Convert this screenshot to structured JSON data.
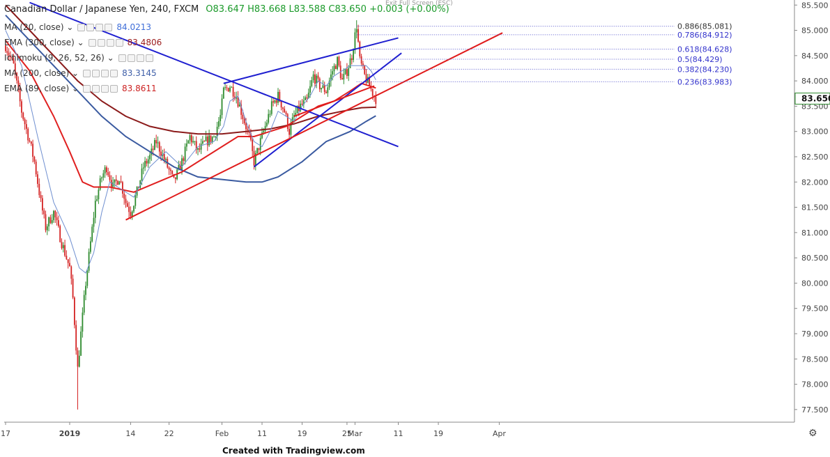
{
  "header": {
    "symbol": "Canadian Dollar / Japanese Yen, 240, FXCM",
    "ohlc": "O83.647 H83.668 L83.588 C83.650 +0.003 (+0.00%)",
    "exit_fullscreen": "Exit Full Screen (ESC)"
  },
  "indicators": [
    {
      "label": "MA (20, close)",
      "value": "84.0213",
      "color": "#3f6ed8"
    },
    {
      "label": "EMA (300, close)",
      "value": "83.4806",
      "color": "#9b1b1b"
    },
    {
      "label": "Ichimoku (9, 26, 52, 26)",
      "value": "",
      "color": "#333333"
    },
    {
      "label": "MA (200, close)",
      "value": "83.3145",
      "color": "#3f5fa8"
    },
    {
      "label": "EMA (89, close)",
      "value": "83.8611",
      "color": "#cc2222"
    }
  ],
  "footer": {
    "credit": "Created with Tradingview.com",
    "settings_icon": "gear-icon"
  },
  "colors": {
    "up": "#2e8b2e",
    "down": "#d42222",
    "blue_line": "#1f1fd0",
    "red_line": "#e01b1b",
    "ema300": "#8b1a1a",
    "ma200": "#3a5aa0",
    "ema89": "#e02020",
    "ma20": "#6f8fd0"
  },
  "chart_data": {
    "type": "candlestick",
    "title": "Canadian Dollar / Japanese Yen, 240, FXCM",
    "ylim": [
      77.25,
      85.6
    ],
    "y_ticks": [
      77.5,
      78.0,
      78.5,
      79.0,
      79.5,
      80.0,
      80.5,
      81.0,
      81.5,
      82.0,
      82.5,
      83.0,
      83.5,
      84.0,
      84.5,
      85.0,
      85.5
    ],
    "y_tick_labels": [
      "77.500",
      "78.000",
      "78.500",
      "79.000",
      "79.500",
      "80.000",
      "80.500",
      "81.000",
      "81.500",
      "82.000",
      "82.500",
      "83.000",
      "83.500",
      "84.000",
      "84.500",
      "85.000",
      "85.500"
    ],
    "last_price": "83.650",
    "x_tick_labels": [
      {
        "i": 0,
        "label": "17"
      },
      {
        "i": 40,
        "label": "2019"
      },
      {
        "i": 78,
        "label": "14"
      },
      {
        "i": 102,
        "label": "22"
      },
      {
        "i": 135,
        "label": "Feb"
      },
      {
        "i": 160,
        "label": "11"
      },
      {
        "i": 185,
        "label": "19"
      },
      {
        "i": 213,
        "label": "25"
      },
      {
        "i": 218,
        "label": "Mar"
      },
      {
        "i": 245,
        "label": "11"
      },
      {
        "i": 270,
        "label": "19"
      },
      {
        "i": 308,
        "label": "Apr"
      }
    ],
    "bars": 232,
    "keypoints": [
      [
        0,
        84.7
      ],
      [
        5,
        84.3
      ],
      [
        10,
        83.4
      ],
      [
        15,
        82.8
      ],
      [
        18,
        82.4
      ],
      [
        22,
        81.6
      ],
      [
        25,
        81.1
      ],
      [
        30,
        81.4
      ],
      [
        35,
        80.8
      ],
      [
        40,
        80.3
      ],
      [
        42,
        79.7
      ],
      [
        45,
        78.3
      ],
      [
        47,
        79.0
      ],
      [
        50,
        80.0
      ],
      [
        53,
        80.8
      ],
      [
        56,
        81.6
      ],
      [
        60,
        82.1
      ],
      [
        63,
        82.3
      ],
      [
        67,
        81.9
      ],
      [
        71,
        82.1
      ],
      [
        75,
        81.6
      ],
      [
        78,
        81.4
      ],
      [
        82,
        81.8
      ],
      [
        86,
        82.3
      ],
      [
        90,
        82.5
      ],
      [
        94,
        82.8
      ],
      [
        97,
        82.6
      ],
      [
        101,
        82.3
      ],
      [
        105,
        82.0
      ],
      [
        110,
        82.4
      ],
      [
        115,
        82.9
      ],
      [
        120,
        82.6
      ],
      [
        125,
        82.8
      ],
      [
        130,
        82.9
      ],
      [
        134,
        83.3
      ],
      [
        136,
        83.8
      ],
      [
        140,
        83.9
      ],
      [
        144,
        83.7
      ],
      [
        148,
        83.3
      ],
      [
        152,
        82.9
      ],
      [
        155,
        82.4
      ],
      [
        158,
        82.7
      ],
      [
        162,
        83.1
      ],
      [
        166,
        83.5
      ],
      [
        170,
        83.7
      ],
      [
        174,
        83.4
      ],
      [
        177,
        83.0
      ],
      [
        180,
        83.3
      ],
      [
        184,
        83.5
      ],
      [
        188,
        83.6
      ],
      [
        192,
        84.1
      ],
      [
        196,
        83.9
      ],
      [
        200,
        83.8
      ],
      [
        204,
        84.2
      ],
      [
        207,
        84.4
      ],
      [
        210,
        84.0
      ],
      [
        213,
        84.2
      ],
      [
        216,
        84.5
      ],
      [
        219,
        85.1
      ],
      [
        221,
        84.4
      ],
      [
        224,
        84.1
      ],
      [
        227,
        83.9
      ],
      [
        230,
        83.7
      ],
      [
        231,
        83.65
      ]
    ],
    "overlays": {
      "ma20": [
        [
          0,
          85.0
        ],
        [
          10,
          84.3
        ],
        [
          20,
          82.9
        ],
        [
          30,
          81.6
        ],
        [
          40,
          80.9
        ],
        [
          46,
          80.3
        ],
        [
          50,
          80.2
        ],
        [
          55,
          80.6
        ],
        [
          60,
          81.4
        ],
        [
          65,
          82.0
        ],
        [
          70,
          81.9
        ],
        [
          80,
          81.7
        ],
        [
          90,
          82.3
        ],
        [
          100,
          82.6
        ],
        [
          110,
          82.3
        ],
        [
          120,
          82.7
        ],
        [
          130,
          82.8
        ],
        [
          136,
          83.1
        ],
        [
          140,
          83.6
        ],
        [
          145,
          83.7
        ],
        [
          150,
          83.2
        ],
        [
          155,
          82.8
        ],
        [
          160,
          82.7
        ],
        [
          165,
          83.0
        ],
        [
          170,
          83.4
        ],
        [
          175,
          83.3
        ],
        [
          180,
          83.2
        ],
        [
          185,
          83.5
        ],
        [
          190,
          83.7
        ],
        [
          195,
          84.0
        ],
        [
          200,
          83.9
        ],
        [
          205,
          84.1
        ],
        [
          210,
          84.2
        ],
        [
          215,
          84.3
        ],
        [
          220,
          84.3
        ],
        [
          225,
          84.3
        ],
        [
          228,
          84.2
        ],
        [
          231,
          84.02
        ]
      ],
      "ema89": [
        [
          0,
          84.8
        ],
        [
          15,
          84.2
        ],
        [
          30,
          83.3
        ],
        [
          40,
          82.6
        ],
        [
          48,
          82.0
        ],
        [
          55,
          81.9
        ],
        [
          65,
          81.9
        ],
        [
          80,
          81.8
        ],
        [
          95,
          82.0
        ],
        [
          110,
          82.2
        ],
        [
          125,
          82.5
        ],
        [
          135,
          82.7
        ],
        [
          145,
          82.9
        ],
        [
          155,
          82.9
        ],
        [
          165,
          83.0
        ],
        [
          175,
          83.1
        ],
        [
          185,
          83.3
        ],
        [
          195,
          83.5
        ],
        [
          205,
          83.6
        ],
        [
          215,
          83.8
        ],
        [
          222,
          83.95
        ],
        [
          231,
          83.86
        ]
      ],
      "ma200": [
        [
          0,
          85.3
        ],
        [
          15,
          84.8
        ],
        [
          30,
          84.3
        ],
        [
          45,
          83.8
        ],
        [
          60,
          83.3
        ],
        [
          75,
          82.9
        ],
        [
          90,
          82.6
        ],
        [
          105,
          82.3
        ],
        [
          120,
          82.1
        ],
        [
          135,
          82.05
        ],
        [
          150,
          82.0
        ],
        [
          160,
          82.0
        ],
        [
          170,
          82.1
        ],
        [
          185,
          82.4
        ],
        [
          200,
          82.8
        ],
        [
          215,
          83.0
        ],
        [
          225,
          83.2
        ],
        [
          231,
          83.31
        ]
      ],
      "ema300": [
        [
          0,
          85.5
        ],
        [
          15,
          85.0
        ],
        [
          30,
          84.5
        ],
        [
          45,
          84.0
        ],
        [
          60,
          83.6
        ],
        [
          75,
          83.3
        ],
        [
          90,
          83.1
        ],
        [
          105,
          83.0
        ],
        [
          120,
          82.95
        ],
        [
          135,
          82.95
        ],
        [
          150,
          83.0
        ],
        [
          165,
          83.05
        ],
        [
          180,
          83.15
        ],
        [
          195,
          83.3
        ],
        [
          210,
          83.4
        ],
        [
          222,
          83.47
        ],
        [
          231,
          83.48
        ]
      ]
    },
    "trendlines": [
      {
        "color": "blue",
        "from": [
          15,
          85.55
        ],
        "to": [
          245,
          82.7
        ]
      },
      {
        "color": "blue",
        "from": [
          136,
          83.95
        ],
        "to": [
          245,
          84.85
        ]
      },
      {
        "color": "blue",
        "from": [
          155,
          82.3
        ],
        "to": [
          247,
          84.55
        ]
      },
      {
        "color": "red",
        "from": [
          75,
          81.25
        ],
        "to": [
          310,
          84.95
        ]
      },
      {
        "color": "red",
        "from": [
          180,
          83.3
        ],
        "to": [
          230,
          83.9
        ]
      }
    ],
    "fibonacci": [
      {
        "label": "0.886(85.081)",
        "level": 85.081
      },
      {
        "label": "0.786(84.912)",
        "level": 84.912
      },
      {
        "label": "0.618(84.628)",
        "level": 84.628
      },
      {
        "label": "0.5(84.429)",
        "level": 84.429
      },
      {
        "label": "0.382(84.230)",
        "level": 84.23
      },
      {
        "label": "0.236(83.983)",
        "level": 83.983
      }
    ]
  }
}
